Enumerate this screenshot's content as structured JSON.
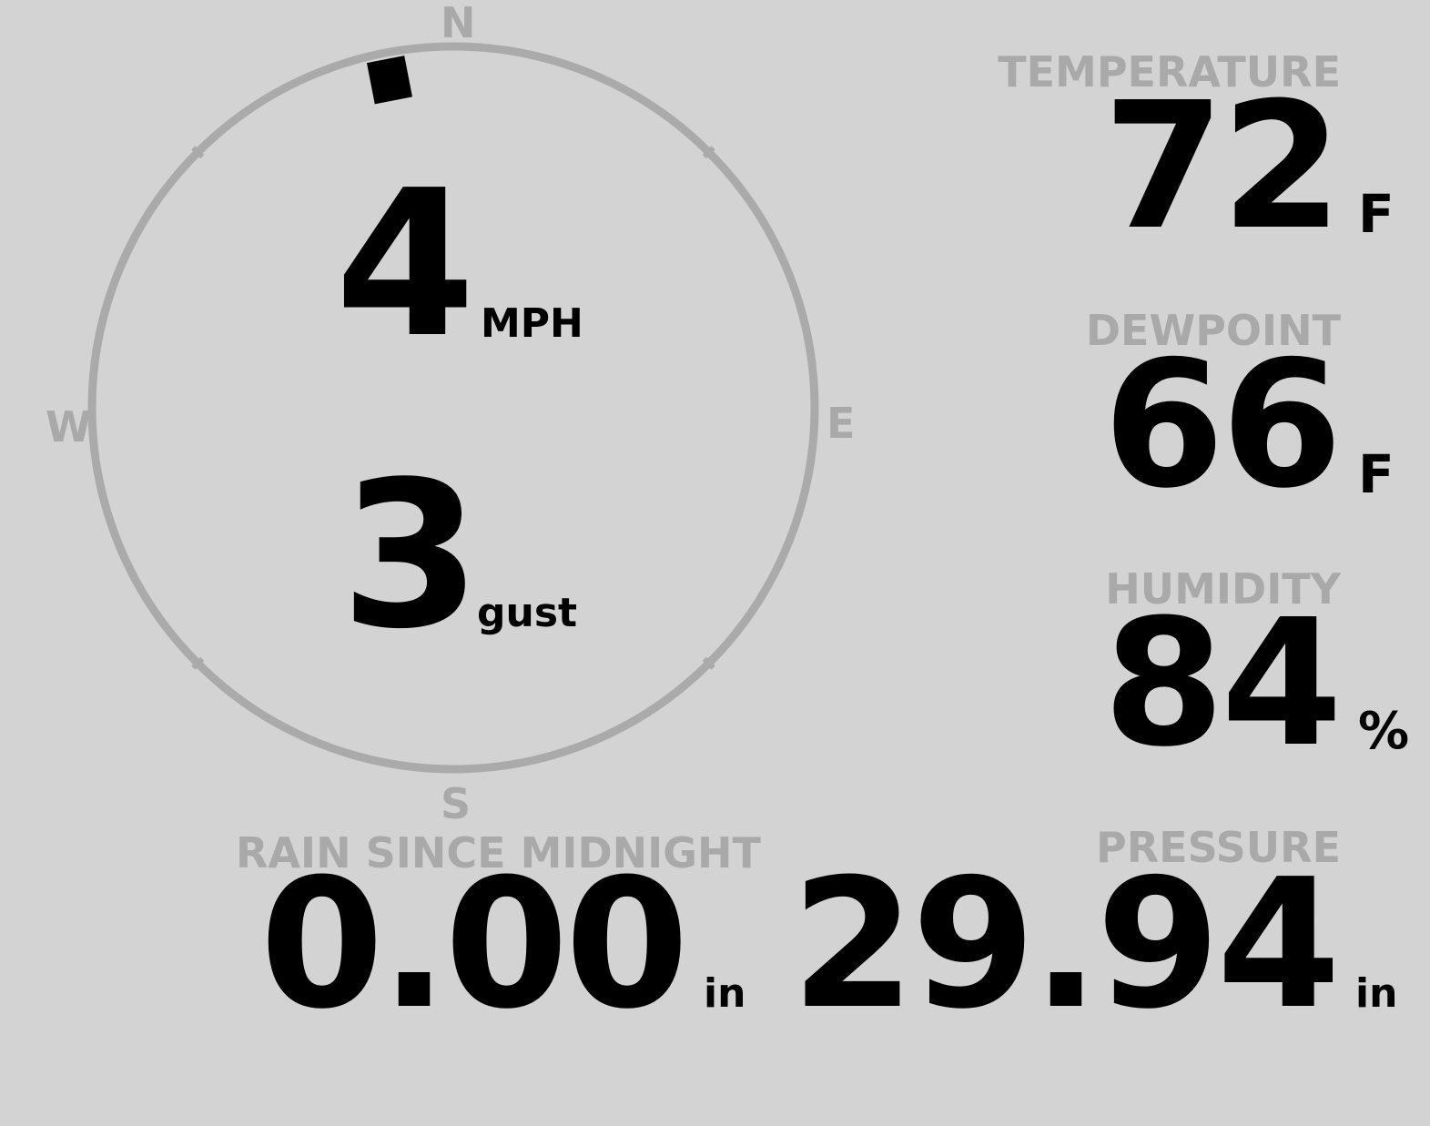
{
  "wind": {
    "speed": "4",
    "speed_unit": "MPH",
    "gust": "3",
    "gust_label": "gust",
    "direction_deg": 349,
    "compass": {
      "n": "N",
      "e": "E",
      "s": "S",
      "w": "W"
    }
  },
  "temperature": {
    "label": "TEMPERATURE",
    "value": "72",
    "unit": "F"
  },
  "dewpoint": {
    "label": "DEWPOINT",
    "value": "66",
    "unit": "F"
  },
  "humidity": {
    "label": "HUMIDITY",
    "value": "84",
    "unit": "%"
  },
  "rain": {
    "label": "RAIN SINCE MIDNIGHT",
    "value": "0.00",
    "unit": "in"
  },
  "pressure": {
    "label": "PRESSURE",
    "value": "29.94",
    "unit": "in"
  },
  "colors": {
    "background": "#d3d3d3",
    "label": "#a9a9a9",
    "value": "#000000"
  }
}
